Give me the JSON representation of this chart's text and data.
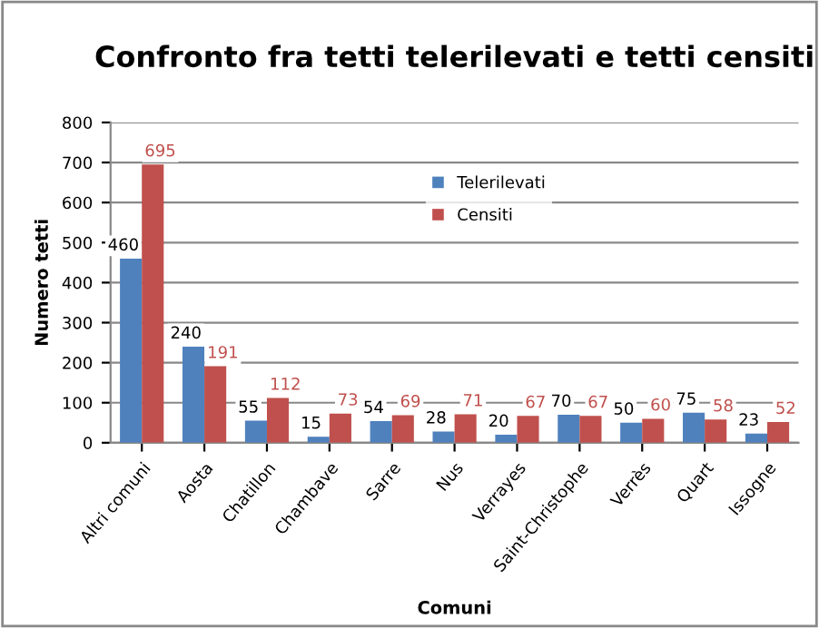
{
  "chart_data": {
    "type": "bar",
    "title": "Confronto fra tetti telerilevati e tetti censiti",
    "xlabel": "Comuni",
    "ylabel": "Numero tetti",
    "categories": [
      "Altri comuni",
      "Aosta",
      "Chatillon",
      "Chambave",
      "Sarre",
      "Nus",
      "Verrayes",
      "Saint-Christophe",
      "Verrès",
      "Quart",
      "Issogne"
    ],
    "series": [
      {
        "name": "Telerilevati",
        "color": "#4f81bd",
        "values": [
          460,
          240,
          55,
          15,
          54,
          28,
          20,
          70,
          50,
          75,
          23
        ]
      },
      {
        "name": "Censiti",
        "color": "#c0504d",
        "values": [
          695,
          191,
          112,
          73,
          69,
          71,
          67,
          67,
          60,
          58,
          52
        ]
      }
    ],
    "ylim": [
      0,
      800
    ],
    "yticks": [
      0,
      100,
      200,
      300,
      400,
      500,
      600,
      700,
      800
    ],
    "grid": "y",
    "legend": "top",
    "data_labels": true
  }
}
